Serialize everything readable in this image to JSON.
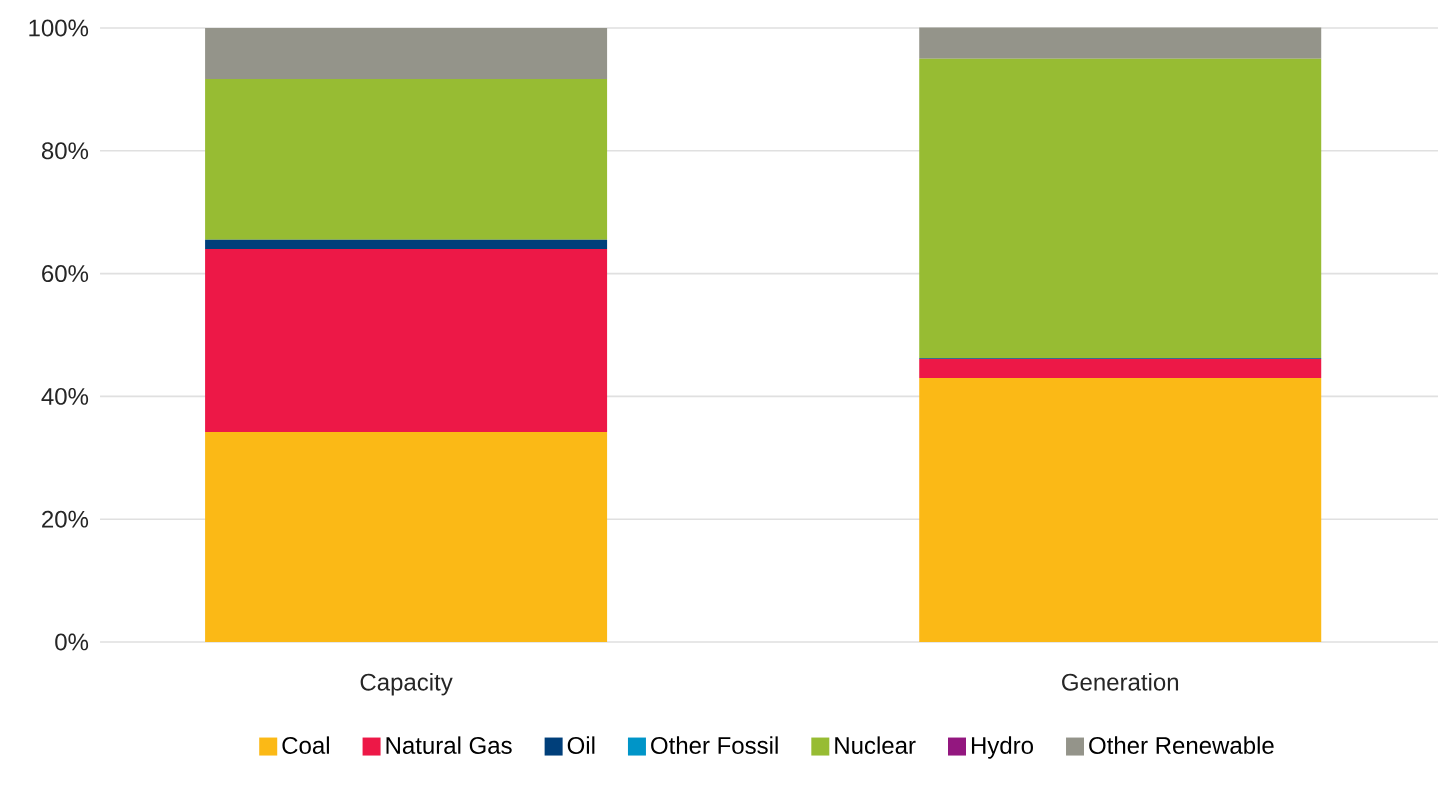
{
  "chart_data": {
    "type": "bar",
    "stacked": true,
    "categories": [
      "Capacity",
      "Generation"
    ],
    "series": [
      {
        "name": "Coal",
        "color": "#fbb916",
        "values": [
          34.2,
          43.0
        ]
      },
      {
        "name": "Natural Gas",
        "color": "#ed1847",
        "values": [
          29.8,
          3.1
        ]
      },
      {
        "name": "Oil",
        "color": "#003f7a",
        "values": [
          1.5,
          0.1
        ]
      },
      {
        "name": "Other Fossil",
        "color": "#0095c8",
        "values": [
          0,
          0
        ]
      },
      {
        "name": "Nuclear",
        "color": "#97bc33",
        "values": [
          26.2,
          48.8
        ]
      },
      {
        "name": "Hydro",
        "color": "#93177f",
        "values": [
          0,
          0
        ]
      },
      {
        "name": "Other Renewable",
        "color": "#94948a",
        "values": [
          8.3,
          5.1
        ]
      }
    ],
    "ylim": [
      0,
      100
    ],
    "yticks": [
      {
        "value": 0,
        "label": "0%"
      },
      {
        "value": 20,
        "label": "20%"
      },
      {
        "value": 40,
        "label": "40%"
      },
      {
        "value": 60,
        "label": "60%"
      },
      {
        "value": 80,
        "label": "80%"
      },
      {
        "value": 100,
        "label": "100%"
      }
    ],
    "grid": "y",
    "legend": "bottom"
  }
}
